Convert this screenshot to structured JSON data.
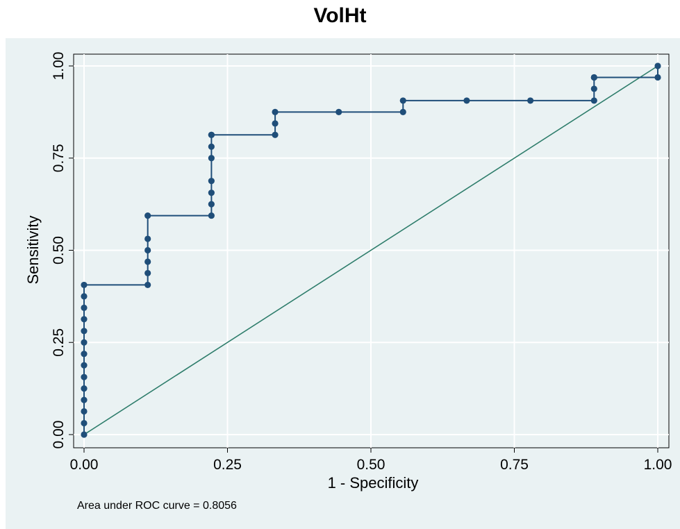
{
  "chart_data": {
    "type": "line",
    "title": "VolHt",
    "xlabel": "1 - Specificity",
    "ylabel": "Sensitivity",
    "xlim": [
      0,
      1
    ],
    "ylim": [
      0,
      1
    ],
    "xticks": [
      "0.00",
      "0.25",
      "0.50",
      "0.75",
      "1.00"
    ],
    "yticks": [
      "0.00",
      "0.25",
      "0.50",
      "0.75",
      "1.00"
    ],
    "grid": true,
    "note": "Area under ROC curve = 0.8056",
    "colors": {
      "roc": "#1f4e79",
      "reference": "#2e7d6b",
      "grid": "#ffffff",
      "panel": "#eaf2f3"
    },
    "series": [
      {
        "type": "roc",
        "x": [
          0,
          0,
          0,
          0,
          0,
          0,
          0,
          0,
          0,
          0,
          0,
          0,
          0,
          0,
          0.111,
          0.111,
          0.111,
          0.111,
          0.111,
          0.111,
          0.222,
          0.222,
          0.222,
          0.222,
          0.222,
          0.222,
          0.222,
          0.222,
          0.333,
          0.333,
          0.333,
          0.444,
          0.556,
          0.556,
          0.667,
          0.778,
          0.889,
          0.889,
          0.889,
          0.889,
          1,
          1
        ],
        "y": [
          0,
          0.031,
          0.063,
          0.094,
          0.125,
          0.156,
          0.188,
          0.219,
          0.25,
          0.281,
          0.313,
          0.344,
          0.375,
          0.406,
          0.406,
          0.438,
          0.469,
          0.5,
          0.531,
          0.594,
          0.594,
          0.625,
          0.656,
          0.688,
          0.75,
          0.781,
          0.813,
          0.813,
          0.813,
          0.844,
          0.875,
          0.875,
          0.875,
          0.906,
          0.906,
          0.906,
          0.906,
          0.938,
          0.969,
          0.969,
          0.969,
          1
        ]
      },
      {
        "type": "reference",
        "x": [
          0,
          1
        ],
        "y": [
          0,
          1
        ]
      }
    ]
  }
}
